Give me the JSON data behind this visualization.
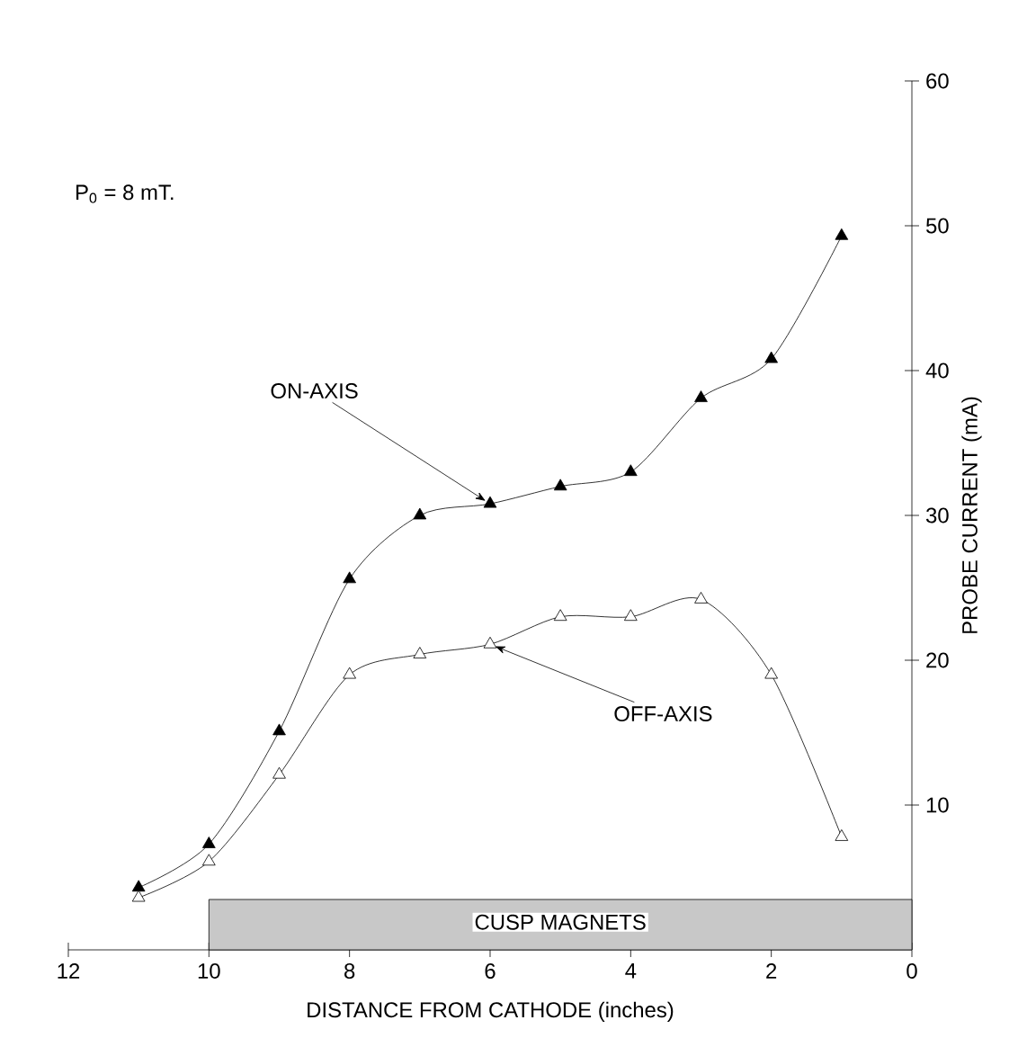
{
  "chart_data": {
    "type": "line",
    "xlabel": "DISTANCE FROM CATHODE (inches)",
    "ylabel": "PROBE CURRENT (mA)",
    "xlim": [
      12,
      0
    ],
    "xticks": [
      12,
      10,
      8,
      6,
      4,
      2,
      0
    ],
    "ylim": [
      0,
      60
    ],
    "yticks": [
      10,
      20,
      30,
      40,
      50,
      60
    ],
    "marker": "triangle",
    "grid": false,
    "series": [
      {
        "color": "#000000",
        "x": [
          11,
          10,
          9,
          8,
          7,
          6,
          5,
          4,
          3,
          2,
          1
        ],
        "values": [
          4.3,
          7.3,
          15.1,
          25.6,
          30,
          30.8,
          32,
          33,
          38.1,
          40.8,
          49.3
        ]
      },
      {
        "color": "#000000",
        "x": [
          11,
          10,
          9,
          8,
          7,
          6,
          5,
          4,
          3,
          2,
          1
        ],
        "values": [
          3.6,
          6.1,
          12.1,
          19,
          20.4,
          21.1,
          23,
          23,
          24.2,
          19,
          7.8
        ]
      }
    ],
    "bands": [
      {
        "axis": "x",
        "from": 10,
        "to": 0,
        "label": "CUSP MAGNETS",
        "color": "#c8c8c8"
      }
    ],
    "annotations": [
      "P$_{0}$ = 8 mT.",
      {
        "text": "ON-AXIS",
        "x": 6,
        "y": 30.8
      },
      {
        "text": "OFF-AXIS",
        "x": 6,
        "y": 21.1
      }
    ]
  }
}
